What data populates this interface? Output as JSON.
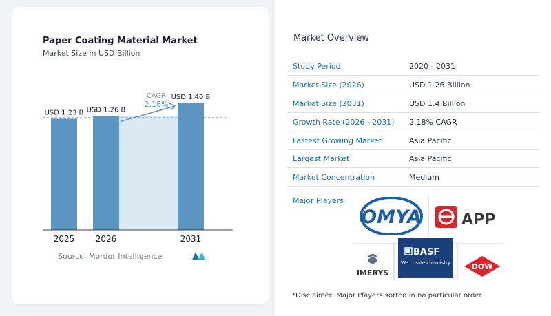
{
  "chart_card": {
    "title": "Paper Coating Material Market",
    "subtitle": "Market Size in USD Billion",
    "source": "Source:  Mordor Intelligence"
  },
  "chart_data": {
    "type": "bar",
    "title": "Paper Coating Material Market",
    "subtitle": "Market Size in USD Billion",
    "categories": [
      "2025",
      "2026",
      "2031"
    ],
    "values": [
      1.23,
      1.26,
      1.4
    ],
    "data_labels": [
      "USD 1.23 B",
      "USD 1.26 B",
      "USD 1.40 B"
    ],
    "cagr_label": "CAGR",
    "cagr_value": "2.18%",
    "ylim": [
      0,
      1.4
    ],
    "bar_color": "#5b95c2",
    "highlight_color": "#dbe9f5",
    "axis_color": "#3c4253"
  },
  "overview": {
    "title": "Market Overview",
    "rows": [
      {
        "label": "Study Period",
        "value": "2020 - 2031"
      },
      {
        "label": "Market Size (2026)",
        "value": "USD 1.26 Billion"
      },
      {
        "label": "Market Size (2031)",
        "value": "USD 1.4 Billion"
      },
      {
        "label": "Growth Rate (2026 - 2031)",
        "value": "2.18% CAGR"
      },
      {
        "label": "Fastest Growing Market",
        "value": "Asia Pacific"
      },
      {
        "label": "Largest Market",
        "value": "Asia Pacific"
      },
      {
        "label": "Market Concentration",
        "value": "Medium"
      }
    ],
    "players_label": "Major Players",
    "disclaimer": "*Disclaimer: Major Players sorted in no particular order"
  },
  "logos": {
    "omya": "OMYA",
    "app": "APP",
    "basf": "BASF",
    "basf_tagline": "We create chemistry",
    "imerys": "IMERYS",
    "dow": "DOW"
  }
}
